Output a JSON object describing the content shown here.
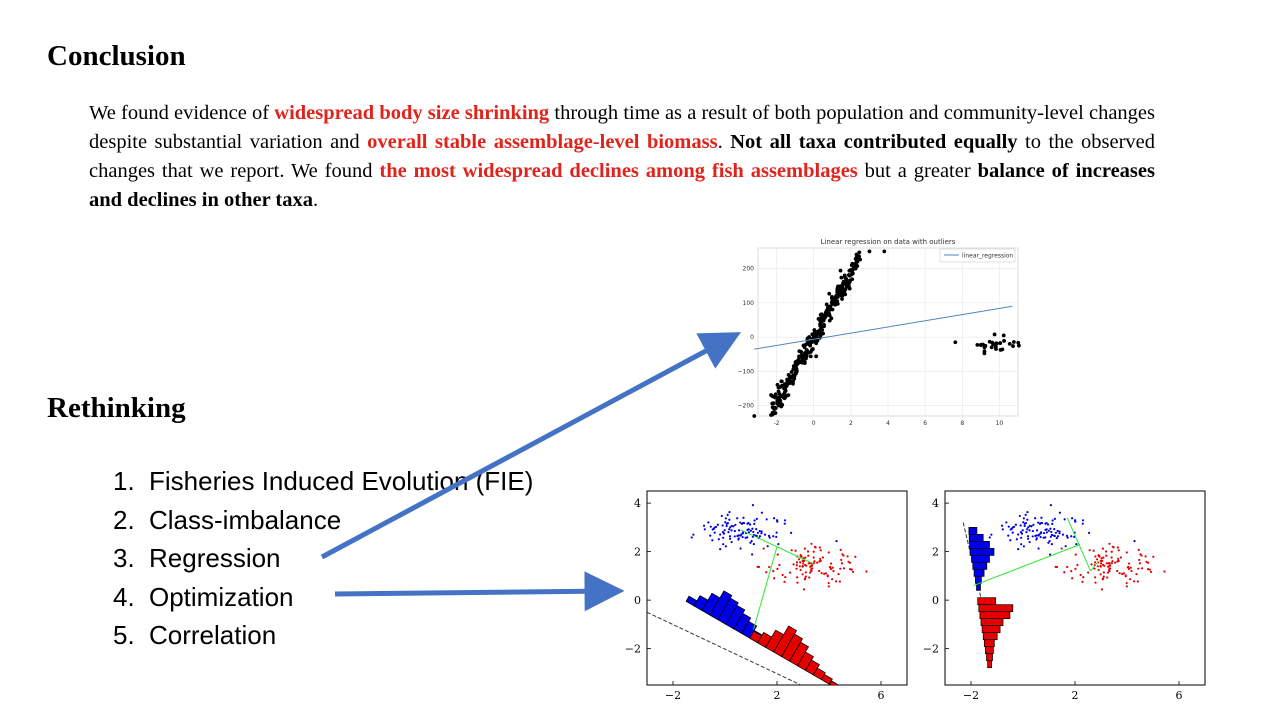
{
  "conclusion": {
    "heading": "Conclusion",
    "segments": [
      {
        "text": "We found evidence of ",
        "style": "plain"
      },
      {
        "text": "widespread body size shrinking",
        "style": "red"
      },
      {
        "text": " through time as a result of both population and community-level changes despite substantial variation and ",
        "style": "plain"
      },
      {
        "text": "overall stable assemblage-level biomass",
        "style": "red"
      },
      {
        "text": ". ",
        "style": "plain"
      },
      {
        "text": "Not all taxa contributed equally",
        "style": "bold"
      },
      {
        "text": " to the observed changes that we report. We found ",
        "style": "plain"
      },
      {
        "text": "the most widespread declines among fish assemblages",
        "style": "red"
      },
      {
        "text": " but a greater ",
        "style": "plain"
      },
      {
        "text": "balance of increases and declines in other taxa",
        "style": "bold"
      },
      {
        "text": ".",
        "style": "plain"
      }
    ]
  },
  "rethinking": {
    "heading": "Rethinking",
    "items": [
      {
        "num": "1.",
        "label": "Fisheries Induced Evolution (FIE)"
      },
      {
        "num": "2.",
        "label": "Class-imbalance"
      },
      {
        "num": "3.",
        "label": "Regression"
      },
      {
        "num": "4.",
        "label": "Optimization"
      },
      {
        "num": "5.",
        "label": "Correlation"
      }
    ]
  },
  "colors": {
    "red_emphasis": "#e0231b",
    "arrow": "#4472c4",
    "regression_line": "#4f86c0",
    "class_a": "#0000e6",
    "class_b": "#e60000",
    "projection": "#2ee82e"
  },
  "chart_data": [
    {
      "type": "scatter",
      "title": "Linear regression on data with outliers",
      "legend": [
        "linear_regression"
      ],
      "legend_position": "top-right",
      "grid": true,
      "xlim": [
        -3,
        11
      ],
      "ylim": [
        -230,
        260
      ],
      "xticks": [
        "-2",
        "0",
        "2",
        "4",
        "6",
        "8",
        "10"
      ],
      "yticks": [
        "200",
        "100",
        "0",
        "−100",
        "−200"
      ],
      "regression_line": {
        "x": [
          -3.2,
          10.7
        ],
        "y": [
          -35,
          90
        ]
      },
      "outliers": [
        [
          3.0,
          250
        ],
        [
          3.8,
          250
        ],
        [
          -3.2,
          -230
        ]
      ],
      "main_cluster_trend": {
        "slope": 95,
        "x_range": [
          -2.5,
          2.6
        ]
      },
      "second_cluster_center": [
        9.8,
        -20
      ]
    },
    {
      "type": "scatter",
      "xlim": [
        -3,
        7
      ],
      "ylim": [
        -3.5,
        4.5
      ],
      "xticks": [
        "−2",
        "2",
        "6"
      ],
      "yticks": [
        "4",
        "2",
        "0",
        "−2"
      ],
      "series": [
        {
          "center": [
            0.6,
            2.9
          ],
          "color": "blue"
        },
        {
          "center": [
            3.4,
            1.5
          ],
          "color": "red"
        }
      ],
      "projection_axis_slope": -0.62,
      "histograms": "class projections onto a discriminant axis"
    },
    {
      "type": "scatter",
      "xlim": [
        -3,
        7
      ],
      "ylim": [
        -3.5,
        4.5
      ],
      "xticks": [
        "−2",
        "2",
        "6"
      ],
      "yticks": [
        "4",
        "2",
        "0",
        "−2"
      ],
      "series": [
        {
          "center": [
            0.6,
            2.9
          ],
          "color": "blue"
        },
        {
          "center": [
            3.4,
            1.5
          ],
          "color": "red"
        }
      ],
      "projection_axis_slope": -4.2,
      "histograms": "class projections onto a steep discriminant axis"
    }
  ]
}
